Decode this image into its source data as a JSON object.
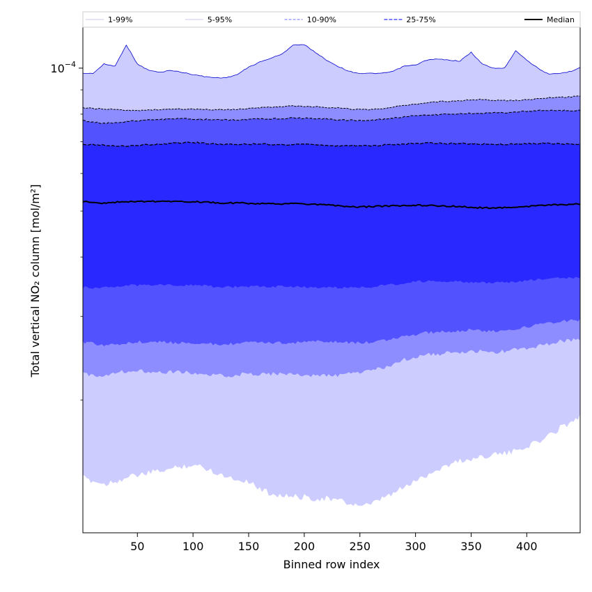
{
  "chart_data": {
    "type": "area",
    "title": "",
    "xlabel": "Binned row index",
    "ylabel": "Total vertical NO₂ column [mol/m²]",
    "xlim": [
      1,
      448
    ],
    "ylim": [
      1.05e-05,
      0.000122
    ],
    "yscale": "log",
    "x_ticks": [
      50,
      100,
      150,
      200,
      250,
      300,
      350,
      400
    ],
    "y_tick_labels": [
      {
        "value": 0.0001,
        "label": "10^-4"
      }
    ],
    "legend_position": "top",
    "grid": false,
    "colors": {
      "band_1_99": "#ccccff",
      "band_5_95": "#8d8dff",
      "band_10_90": "#5252ff",
      "band_25_75": "#2828ff",
      "edge_1_99": "#0000cc",
      "median": "#000000"
    },
    "x": [
      1,
      10,
      20,
      30,
      40,
      50,
      60,
      70,
      80,
      90,
      100,
      110,
      120,
      130,
      140,
      150,
      160,
      170,
      180,
      190,
      200,
      210,
      220,
      230,
      240,
      250,
      260,
      270,
      280,
      290,
      300,
      310,
      320,
      330,
      340,
      350,
      360,
      370,
      380,
      390,
      400,
      410,
      420,
      430,
      440,
      448
    ],
    "series": [
      {
        "name": "1-99%",
        "kind": "band",
        "upper": [
          9.75e-05,
          9.75e-05,
          0.000102,
          0.000101,
          0.000112,
          0.000102,
          9.9e-05,
          9.8e-05,
          9.9e-05,
          9.8e-05,
          9.7e-05,
          9.6e-05,
          9.55e-05,
          9.55e-05,
          9.7e-05,
          0.0001005,
          0.000103,
          0.000105,
          0.000107,
          0.000112,
          0.000112,
          0.000108,
          0.000104,
          0.000101,
          9.85e-05,
          9.75e-05,
          9.75e-05,
          9.75e-05,
          9.85e-05,
          0.000101,
          0.0001015,
          0.000104,
          0.0001045,
          0.000104,
          0.0001035,
          0.000108,
          0.000102,
          0.0001,
          0.0001,
          0.000109,
          0.000104,
          0.0001,
          9.7e-05,
          9.75e-05,
          9.85e-05,
          0.0001005
        ],
        "lower": [
          1.37e-05,
          1.35e-05,
          1.33e-05,
          1.35e-05,
          1.37e-05,
          1.39e-05,
          1.4e-05,
          1.42e-05,
          1.43e-05,
          1.45e-05,
          1.46e-05,
          1.44e-05,
          1.41e-05,
          1.38e-05,
          1.36e-05,
          1.35e-05,
          1.3e-05,
          1.27e-05,
          1.26e-05,
          1.25e-05,
          1.25e-05,
          1.24e-05,
          1.24e-05,
          1.23e-05,
          1.21e-05,
          1.2e-05,
          1.2e-05,
          1.24e-05,
          1.27e-05,
          1.31e-05,
          1.35e-05,
          1.39e-05,
          1.43e-05,
          1.46e-05,
          1.49e-05,
          1.5e-05,
          1.52e-05,
          1.54e-05,
          1.54e-05,
          1.56e-05,
          1.6e-05,
          1.63e-05,
          1.68e-05,
          1.75e-05,
          1.8e-05,
          1.85e-05
        ]
      },
      {
        "name": "5-95%",
        "kind": "band",
        "upper": [
          8.25e-05,
          8.22e-05,
          8.2e-05,
          8.18e-05,
          8.16e-05,
          8.15e-05,
          8.16e-05,
          8.18e-05,
          8.2e-05,
          8.2e-05,
          8.19e-05,
          8.18e-05,
          8.18e-05,
          8.18e-05,
          8.19e-05,
          8.22e-05,
          8.25e-05,
          8.28e-05,
          8.3e-05,
          8.32e-05,
          8.31e-05,
          8.29e-05,
          8.27e-05,
          8.25e-05,
          8.21e-05,
          8.18e-05,
          8.18e-05,
          8.22e-05,
          8.28e-05,
          8.35e-05,
          8.4e-05,
          8.45e-05,
          8.5e-05,
          8.52e-05,
          8.54e-05,
          8.58e-05,
          8.59e-05,
          8.56e-05,
          8.54e-05,
          8.56e-05,
          8.58e-05,
          8.62e-05,
          8.66e-05,
          8.68e-05,
          8.7e-05,
          8.75e-05
        ],
        "lower": [
          2.27e-05,
          2.25e-05,
          2.26e-05,
          2.28e-05,
          2.3e-05,
          2.31e-05,
          2.3e-05,
          2.29e-05,
          2.29e-05,
          2.29e-05,
          2.28e-05,
          2.26e-05,
          2.25e-05,
          2.25e-05,
          2.26e-05,
          2.27e-05,
          2.27e-05,
          2.27e-05,
          2.27e-05,
          2.26e-05,
          2.26e-05,
          2.25e-05,
          2.25e-05,
          2.25e-05,
          2.27e-05,
          2.29e-05,
          2.31e-05,
          2.33e-05,
          2.37e-05,
          2.43e-05,
          2.47e-05,
          2.49e-05,
          2.5e-05,
          2.51e-05,
          2.52e-05,
          2.53e-05,
          2.53e-05,
          2.52e-05,
          2.53e-05,
          2.55e-05,
          2.57e-05,
          2.6e-05,
          2.63e-05,
          2.66e-05,
          2.68e-05,
          2.68e-05
        ]
      },
      {
        "name": "10-90%",
        "kind": "band",
        "upper": [
          7.75e-05,
          7.7e-05,
          7.65e-05,
          7.68e-05,
          7.72e-05,
          7.75e-05,
          7.77e-05,
          7.8e-05,
          7.82e-05,
          7.82e-05,
          7.81e-05,
          7.8e-05,
          7.79e-05,
          7.78e-05,
          7.78e-05,
          7.8e-05,
          7.81e-05,
          7.82e-05,
          7.84e-05,
          7.85e-05,
          7.84e-05,
          7.83e-05,
          7.81e-05,
          7.79e-05,
          7.77e-05,
          7.76e-05,
          7.77e-05,
          7.8e-05,
          7.85e-05,
          7.9e-05,
          7.95e-05,
          7.97e-05,
          7.98e-05,
          8e-05,
          8.02e-05,
          8.03e-05,
          8.04e-05,
          8.05e-05,
          8.06e-05,
          8.08e-05,
          8.11e-05,
          8.14e-05,
          8.15e-05,
          8.14e-05,
          8.14e-05,
          8.15e-05
        ],
        "lower": [
          2.65e-05,
          2.63e-05,
          2.6e-05,
          2.62e-05,
          2.64e-05,
          2.65e-05,
          2.65e-05,
          2.65e-05,
          2.64e-05,
          2.64e-05,
          2.64e-05,
          2.63e-05,
          2.62e-05,
          2.62e-05,
          2.63e-05,
          2.64e-05,
          2.64e-05,
          2.64e-05,
          2.64e-05,
          2.64e-05,
          2.65e-05,
          2.66e-05,
          2.66e-05,
          2.65e-05,
          2.64e-05,
          2.64e-05,
          2.65e-05,
          2.67e-05,
          2.69e-05,
          2.72e-05,
          2.75e-05,
          2.77e-05,
          2.78e-05,
          2.79e-05,
          2.8e-05,
          2.81e-05,
          2.8e-05,
          2.79e-05,
          2.8e-05,
          2.82e-05,
          2.85e-05,
          2.88e-05,
          2.91e-05,
          2.93e-05,
          2.94e-05,
          2.95e-05
        ]
      },
      {
        "name": "25-75%",
        "kind": "band",
        "upper": [
          6.92e-05,
          6.9e-05,
          6.88e-05,
          6.86e-05,
          6.85e-05,
          6.88e-05,
          6.9e-05,
          6.92e-05,
          6.95e-05,
          6.97e-05,
          6.98e-05,
          6.95e-05,
          6.92e-05,
          6.91e-05,
          6.92e-05,
          6.92e-05,
          6.92e-05,
          6.91e-05,
          6.9e-05,
          6.9e-05,
          6.9e-05,
          6.9e-05,
          6.88e-05,
          6.87e-05,
          6.86e-05,
          6.86e-05,
          6.87e-05,
          6.88e-05,
          6.9e-05,
          6.92e-05,
          6.94e-05,
          6.95e-05,
          6.95e-05,
          6.94e-05,
          6.94e-05,
          6.93e-05,
          6.92e-05,
          6.92e-05,
          6.91e-05,
          6.92e-05,
          6.93e-05,
          6.94e-05,
          6.94e-05,
          6.93e-05,
          6.92e-05,
          6.92e-05
        ],
        "lower": [
          3.45e-05,
          3.45e-05,
          3.46e-05,
          3.47e-05,
          3.48e-05,
          3.49e-05,
          3.5e-05,
          3.5e-05,
          3.5e-05,
          3.49e-05,
          3.49e-05,
          3.48e-05,
          3.47e-05,
          3.46e-05,
          3.46e-05,
          3.47e-05,
          3.47e-05,
          3.47e-05,
          3.47e-05,
          3.46e-05,
          3.46e-05,
          3.46e-05,
          3.46e-05,
          3.45e-05,
          3.45e-05,
          3.45e-05,
          3.46e-05,
          3.48e-05,
          3.5e-05,
          3.53e-05,
          3.55e-05,
          3.56e-05,
          3.56e-05,
          3.56e-05,
          3.55e-05,
          3.54e-05,
          3.54e-05,
          3.53e-05,
          3.53e-05,
          3.55e-05,
          3.57e-05,
          3.59e-05,
          3.61e-05,
          3.62e-05,
          3.62e-05,
          3.63e-05
        ]
      },
      {
        "name": "Median",
        "kind": "line",
        "values": [
          5.24e-05,
          5.2e-05,
          5.2e-05,
          5.22e-05,
          5.23e-05,
          5.24e-05,
          5.24e-05,
          5.24e-05,
          5.24e-05,
          5.23e-05,
          5.23e-05,
          5.22e-05,
          5.21e-05,
          5.2e-05,
          5.2e-05,
          5.19e-05,
          5.18e-05,
          5.18e-05,
          5.18e-05,
          5.18e-05,
          5.18e-05,
          5.17e-05,
          5.15e-05,
          5.13e-05,
          5.1e-05,
          5.1e-05,
          5.11e-05,
          5.12e-05,
          5.13e-05,
          5.14e-05,
          5.14e-05,
          5.14e-05,
          5.13e-05,
          5.12e-05,
          5.11e-05,
          5.09e-05,
          5.08e-05,
          5.08e-05,
          5.08e-05,
          5.08e-05,
          5.11e-05,
          5.14e-05,
          5.15e-05,
          5.15e-05,
          5.16e-05,
          5.17e-05
        ]
      }
    ],
    "legend": [
      {
        "label": "1-99%",
        "style": "thin"
      },
      {
        "label": "5-95%",
        "style": "thin"
      },
      {
        "label": "10-90%",
        "style": "dashed-light"
      },
      {
        "label": "25-75%",
        "style": "dashed"
      },
      {
        "label": "Median",
        "style": "solid"
      }
    ]
  }
}
